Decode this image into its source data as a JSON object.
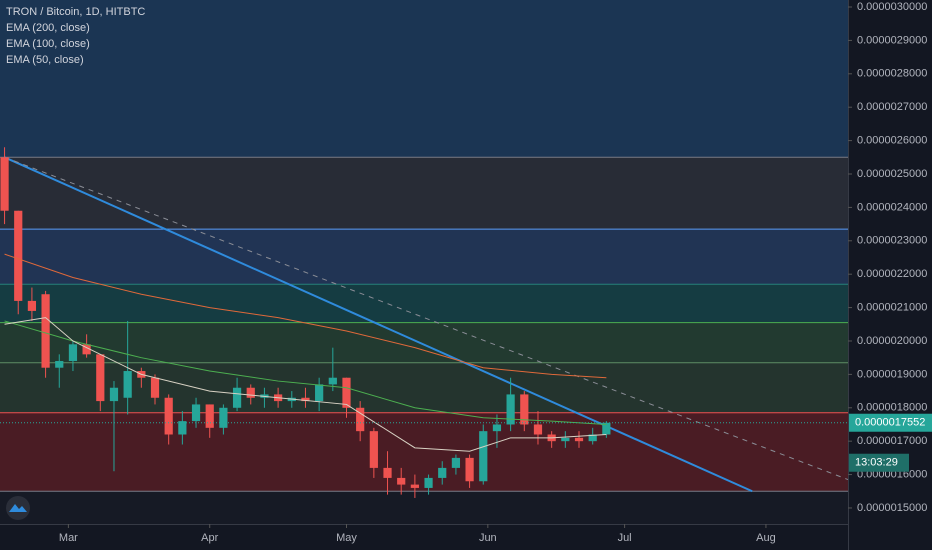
{
  "chart_data": {
    "type": "candlestick",
    "title": "TRON / Bitcoin, 1D, HITBTC",
    "x": [
      0,
      3,
      6,
      9,
      12,
      15,
      18,
      21,
      24,
      27,
      30,
      33,
      36,
      39,
      42,
      45,
      48,
      51,
      54,
      57,
      60,
      63,
      66,
      69,
      72,
      75,
      78,
      81,
      84,
      87,
      90,
      93,
      96,
      99,
      102,
      105,
      108,
      111,
      114,
      117,
      120,
      123,
      126,
      129,
      132
    ],
    "open": [
      2.55e-06,
      2.39e-06,
      2.12e-06,
      2.14e-06,
      1.92e-06,
      1.94e-06,
      1.99e-06,
      1.96e-06,
      1.82e-06,
      1.83e-06,
      1.91e-06,
      1.89e-06,
      1.83e-06,
      1.72e-06,
      1.76e-06,
      1.81e-06,
      1.74e-06,
      1.8e-06,
      1.86e-06,
      1.83e-06,
      1.84e-06,
      1.82e-06,
      1.83e-06,
      1.82e-06,
      1.87e-06,
      1.89e-06,
      1.8e-06,
      1.73e-06,
      1.62e-06,
      1.59e-06,
      1.57e-06,
      1.56e-06,
      1.59e-06,
      1.62e-06,
      1.65e-06,
      1.58e-06,
      1.73e-06,
      1.75e-06,
      1.84e-06,
      1.75e-06,
      1.72e-06,
      1.7e-06,
      1.71e-06,
      1.7e-06,
      1.72e-06
    ],
    "high": [
      2.58e-06,
      2.39e-06,
      2.16e-06,
      2.15e-06,
      1.96e-06,
      2e-06,
      2.02e-06,
      1.96e-06,
      1.88e-06,
      2.06e-06,
      1.92e-06,
      1.9e-06,
      1.84e-06,
      1.79e-06,
      1.83e-06,
      1.81e-06,
      1.81e-06,
      1.89e-06,
      1.87e-06,
      1.86e-06,
      1.86e-06,
      1.85e-06,
      1.86e-06,
      1.89e-06,
      1.98e-06,
      1.89e-06,
      1.82e-06,
      1.74e-06,
      1.67e-06,
      1.62e-06,
      1.6e-06,
      1.6e-06,
      1.64e-06,
      1.66e-06,
      1.66e-06,
      1.75e-06,
      1.78e-06,
      1.89e-06,
      1.85e-06,
      1.79e-06,
      1.73e-06,
      1.73e-06,
      1.73e-06,
      1.74e-06,
      1.76e-06
    ],
    "low": [
      2.35e-06,
      2.08e-06,
      2.06e-06,
      1.89e-06,
      1.86e-06,
      1.91e-06,
      1.95e-06,
      1.79e-06,
      1.61e-06,
      1.78e-06,
      1.86e-06,
      1.81e-06,
      1.69e-06,
      1.69e-06,
      1.74e-06,
      1.71e-06,
      1.72e-06,
      1.79e-06,
      1.81e-06,
      1.8e-06,
      1.8e-06,
      1.8e-06,
      1.8e-06,
      1.79e-06,
      1.85e-06,
      1.77e-06,
      1.7e-06,
      1.59e-06,
      1.54e-06,
      1.54e-06,
      1.53e-06,
      1.54e-06,
      1.57e-06,
      1.6e-06,
      1.56e-06,
      1.57e-06,
      1.68e-06,
      1.73e-06,
      1.73e-06,
      1.69e-06,
      1.68e-06,
      1.68e-06,
      1.68e-06,
      1.69e-06,
      1.71e-06
    ],
    "close": [
      2.39e-06,
      2.12e-06,
      2.09e-06,
      1.92e-06,
      1.94e-06,
      1.99e-06,
      1.96e-06,
      1.82e-06,
      1.86e-06,
      1.91e-06,
      1.89e-06,
      1.83e-06,
      1.72e-06,
      1.76e-06,
      1.81e-06,
      1.74e-06,
      1.8e-06,
      1.86e-06,
      1.83e-06,
      1.84e-06,
      1.82e-06,
      1.83e-06,
      1.82e-06,
      1.87e-06,
      1.89e-06,
      1.8e-06,
      1.73e-06,
      1.62e-06,
      1.59e-06,
      1.57e-06,
      1.56e-06,
      1.59e-06,
      1.62e-06,
      1.65e-06,
      1.58e-06,
      1.73e-06,
      1.75e-06,
      1.84e-06,
      1.75e-06,
      1.72e-06,
      1.7e-06,
      1.71e-06,
      1.7e-06,
      1.72e-06,
      1.7552e-06
    ],
    "up_color": "#26a69a",
    "down_color": "#ef5350",
    "overlays": [
      {
        "name": "EMA (200, close)",
        "color": "#e0693a",
        "x": [
          0,
          15,
          30,
          45,
          60,
          75,
          90,
          105,
          120,
          132
        ],
        "values": [
          2.26e-06,
          2.19e-06,
          2.14e-06,
          2.1e-06,
          2.07e-06,
          2.03e-06,
          1.98e-06,
          1.92e-06,
          1.9e-06,
          1.89e-06
        ]
      },
      {
        "name": "EMA (100, close)",
        "color": "#4caf50",
        "x": [
          0,
          15,
          30,
          45,
          60,
          75,
          90,
          105,
          120,
          132
        ],
        "values": [
          2.06e-06,
          2e-06,
          1.95e-06,
          1.91e-06,
          1.88e-06,
          1.86e-06,
          1.8e-06,
          1.77e-06,
          1.76e-06,
          1.75e-06
        ]
      },
      {
        "name": "EMA (50, close)",
        "color": "#d8d2c4",
        "x": [
          0,
          9,
          15,
          30,
          45,
          60,
          75,
          90,
          102,
          111,
          120,
          132
        ],
        "values": [
          2.05e-06,
          2.07e-06,
          2e-06,
          1.9e-06,
          1.85e-06,
          1.83e-06,
          1.81e-06,
          1.68e-06,
          1.67e-06,
          1.71e-06,
          1.71e-06,
          1.72e-06
        ]
      }
    ],
    "top_fill": "#1b3553",
    "levels": [
      {
        "value": 2.55e-06,
        "color": "#787b86",
        "fill": "#282c36"
      },
      {
        "value": 2.335e-06,
        "color": "#5b9cf6",
        "fill": "#213454"
      },
      {
        "value": 2.17e-06,
        "color": "#26807a",
        "fill": "#153c42"
      },
      {
        "value": 2.055e-06,
        "color": "#4caf50",
        "fill": "#223a30"
      },
      {
        "value": 1.935e-06,
        "color": "#5e8c64",
        "fill": "#24342e"
      },
      {
        "value": 1.785e-06,
        "color": "#f05050",
        "fill": "#4a1c24"
      },
      {
        "value": 1.55e-06,
        "color": "#787b86",
        "fill": "#161a25"
      }
    ],
    "trendlines": [
      {
        "x": [
          0,
          164
        ],
        "values": [
          2.55e-06,
          1.55e-06
        ],
        "color": "#2f8bdc",
        "dashed": false
      },
      {
        "x": [
          0,
          185
        ],
        "values": [
          2.55e-06,
          1.585e-06
        ],
        "color": "#8a8d96",
        "dashed": true
      }
    ],
    "last_price": 1.7552e-06,
    "countdown": "13:03:29",
    "xlim": [
      -1,
      185
    ],
    "xticks": [
      {
        "value": 14,
        "label": "Mar"
      },
      {
        "value": 45,
        "label": "Apr"
      },
      {
        "value": 75,
        "label": "May"
      },
      {
        "value": 106,
        "label": "Jun"
      },
      {
        "value": 136,
        "label": "Jul"
      },
      {
        "value": 167,
        "label": "Aug"
      }
    ],
    "ylim": [
      1.452e-06,
      3.021e-06
    ],
    "yticks": [
      {
        "value": 3e-06,
        "label": "0.0000030000"
      },
      {
        "value": 2.9e-06,
        "label": "0.0000029000"
      },
      {
        "value": 2.8e-06,
        "label": "0.0000028000"
      },
      {
        "value": 2.7e-06,
        "label": "0.0000027000"
      },
      {
        "value": 2.6e-06,
        "label": "0.0000026000"
      },
      {
        "value": 2.5e-06,
        "label": "0.0000025000"
      },
      {
        "value": 2.4e-06,
        "label": "0.0000024000"
      },
      {
        "value": 2.3e-06,
        "label": "0.0000023000"
      },
      {
        "value": 2.2e-06,
        "label": "0.0000022000"
      },
      {
        "value": 2.1e-06,
        "label": "0.0000021000"
      },
      {
        "value": 2e-06,
        "label": "0.0000020000"
      },
      {
        "value": 1.9e-06,
        "label": "0.0000019000"
      },
      {
        "value": 1.8e-06,
        "label": "0.0000018000"
      },
      {
        "value": 1.7e-06,
        "label": "0.0000017000"
      },
      {
        "value": 1.6e-06,
        "label": "0.0000016000"
      },
      {
        "value": 1.5e-06,
        "label": "0.0000015000"
      }
    ]
  }
}
